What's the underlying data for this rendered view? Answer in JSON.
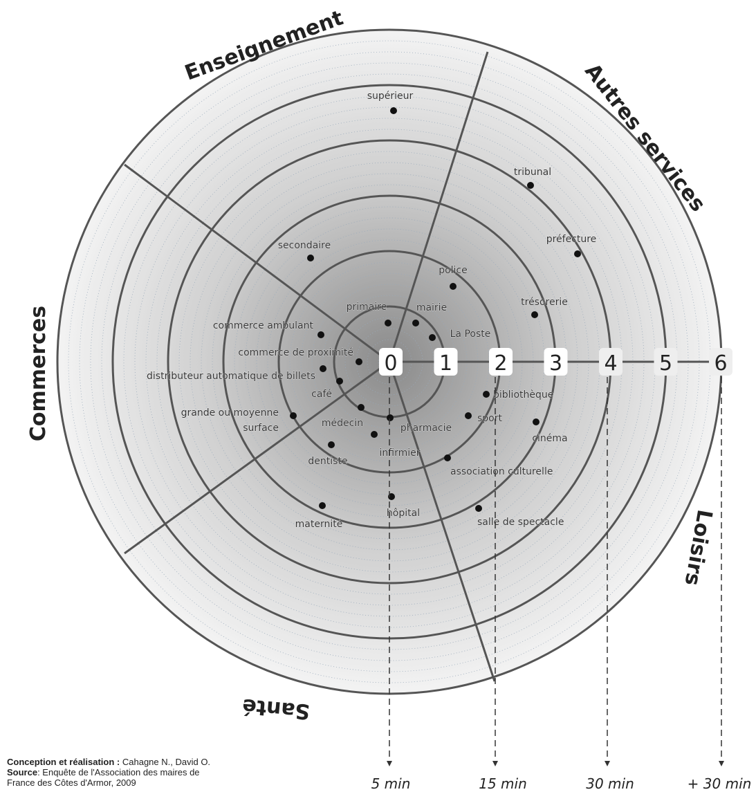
{
  "sectors": [
    "Enseignement",
    "Autres services",
    "Loisirs",
    "Santé",
    "Commerces"
  ],
  "ring_labels": [
    "0",
    "1",
    "2",
    "3",
    "4",
    "5",
    "6"
  ],
  "time_labels": [
    "5 min",
    "15 min",
    "30 min",
    "+ 30 min"
  ],
  "services": [
    "supérieur",
    "secondaire",
    "primaire",
    "mairie",
    "police",
    "La Poste",
    "tribunal",
    "préfecture",
    "trésorerie",
    "commerce ambulant",
    "commerce de proximité",
    "distributeur automatique de billets",
    "café",
    [
      "grande ou moyenne",
      "surface"
    ],
    "médecin",
    "pharmacie",
    "infirmier",
    "dentiste",
    "maternité",
    "hôpital",
    "bibliothèque",
    "sport",
    "cinéma",
    "association culturelle",
    "salle de spectacle"
  ],
  "credits": [
    [
      "Conception et réalisation :",
      " Cahagne N., David O."
    ],
    [
      "Source",
      ": Enquête de l'Association des maires de"
    ],
    [
      "",
      "France des Côtes d'Armor, 2009"
    ]
  ]
}
